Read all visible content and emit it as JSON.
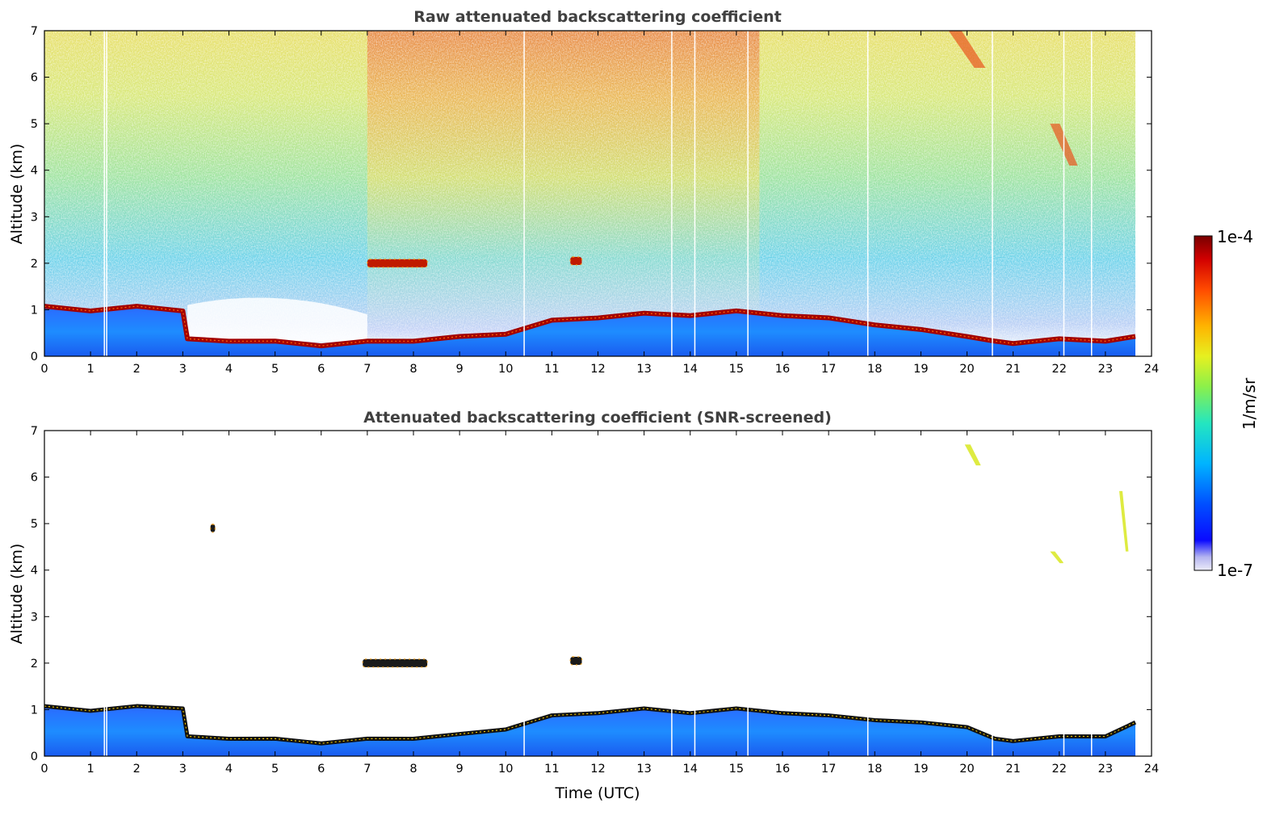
{
  "chart_data": [
    {
      "type": "heatmap",
      "title": "Raw attenuated backscattering coefficient",
      "xlabel": "",
      "ylabel": "Altitude (km)",
      "xlim": [
        0,
        24
      ],
      "ylim": [
        0,
        7
      ],
      "xticks": [
        0,
        1,
        2,
        3,
        4,
        5,
        6,
        7,
        8,
        9,
        10,
        11,
        12,
        13,
        14,
        15,
        16,
        17,
        18,
        19,
        20,
        21,
        22,
        23,
        24
      ],
      "yticks": [
        0,
        1,
        2,
        3,
        4,
        5,
        6,
        7
      ],
      "data_end_hour": 23.65,
      "noise_background": "dense speckle, increasing with altitude; strongest 7-15 UTC",
      "aerosol_layer_top_km": [
        [
          0,
          1.05
        ],
        [
          1,
          1.0
        ],
        [
          2,
          1.05
        ],
        [
          3,
          1.0
        ],
        [
          3.1,
          0.35
        ],
        [
          4,
          0.35
        ],
        [
          5,
          0.3
        ],
        [
          6,
          0.25
        ],
        [
          7,
          0.3
        ],
        [
          8,
          0.35
        ],
        [
          9,
          0.4
        ],
        [
          10,
          0.5
        ],
        [
          11,
          0.75
        ],
        [
          12,
          0.85
        ],
        [
          13,
          0.9
        ],
        [
          14,
          0.9
        ],
        [
          15,
          0.95
        ],
        [
          16,
          0.9
        ],
        [
          17,
          0.8
        ],
        [
          18,
          0.7
        ],
        [
          19,
          0.55
        ],
        [
          20,
          0.45
        ],
        [
          20.6,
          0.3
        ],
        [
          21,
          0.3
        ],
        [
          22,
          0.35
        ],
        [
          23,
          0.35
        ],
        [
          23.65,
          0.4
        ]
      ],
      "features": [
        {
          "name": "cloud",
          "x": [
            7.0,
            8.3
          ],
          "altitude_km": 2.0
        },
        {
          "name": "cloud",
          "x": [
            11.4,
            11.65
          ],
          "altitude_km": 2.05
        },
        {
          "name": "cirrus",
          "x": [
            19.6,
            20.4
          ],
          "altitude_km": [
            6.2,
            7.0
          ]
        },
        {
          "name": "cirrus",
          "x": [
            21.8,
            22.4
          ],
          "altitude_km": [
            4.1,
            5.0
          ]
        }
      ],
      "data_gaps_hours": [
        1.3,
        1.35,
        10.4,
        13.6,
        14.1,
        15.25,
        17.85,
        20.55,
        22.1,
        22.7
      ]
    },
    {
      "type": "heatmap",
      "title": "Attenuated backscattering coefficient (SNR-screened)",
      "xlabel": "Time (UTC)",
      "ylabel": "Altitude (km)",
      "xlim": [
        0,
        24
      ],
      "ylim": [
        0,
        7
      ],
      "xticks": [
        0,
        1,
        2,
        3,
        4,
        5,
        6,
        7,
        8,
        9,
        10,
        11,
        12,
        13,
        14,
        15,
        16,
        17,
        18,
        19,
        20,
        21,
        22,
        23,
        24
      ],
      "yticks": [
        0,
        1,
        2,
        3,
        4,
        5,
        6,
        7
      ],
      "data_end_hour": 23.65,
      "noise_background": "screened out (white)",
      "aerosol_layer_top_km": [
        [
          0,
          1.05
        ],
        [
          1,
          1.0
        ],
        [
          2,
          1.05
        ],
        [
          3,
          1.05
        ],
        [
          3.1,
          0.4
        ],
        [
          4,
          0.4
        ],
        [
          5,
          0.35
        ],
        [
          6,
          0.3
        ],
        [
          7,
          0.35
        ],
        [
          8,
          0.4
        ],
        [
          9,
          0.45
        ],
        [
          10,
          0.6
        ],
        [
          11,
          0.85
        ],
        [
          12,
          0.95
        ],
        [
          13,
          1.0
        ],
        [
          14,
          0.95
        ],
        [
          15,
          1.0
        ],
        [
          16,
          0.95
        ],
        [
          17,
          0.85
        ],
        [
          18,
          0.8
        ],
        [
          19,
          0.7
        ],
        [
          20,
          0.65
        ],
        [
          20.6,
          0.35
        ],
        [
          21,
          0.35
        ],
        [
          22,
          0.4
        ],
        [
          23,
          0.45
        ],
        [
          23.65,
          0.7
        ]
      ],
      "features": [
        {
          "name": "cloud",
          "x": [
            6.9,
            8.3
          ],
          "altitude_km": 2.0
        },
        {
          "name": "cloud",
          "x": [
            11.4,
            11.65
          ],
          "altitude_km": 2.05
        },
        {
          "name": "cloud",
          "x": [
            3.6,
            3.7
          ],
          "altitude_km": 4.9
        },
        {
          "name": "cirrus",
          "x": [
            19.95,
            20.3
          ],
          "altitude_km": [
            6.25,
            6.7
          ]
        },
        {
          "name": "cirrus",
          "x": [
            21.8,
            22.1
          ],
          "altitude_km": [
            4.15,
            4.4
          ]
        },
        {
          "name": "cirrus",
          "x": [
            23.3,
            23.5
          ],
          "altitude_km": [
            4.4,
            5.7
          ]
        }
      ],
      "data_gaps_hours": [
        1.3,
        1.35,
        10.4,
        13.6,
        14.1,
        15.25,
        17.85,
        20.55,
        22.1,
        22.7
      ]
    }
  ],
  "colorbar": {
    "label": "1/m/sr",
    "max_label": "1e-4",
    "min_label": "1e-7",
    "scale": "log",
    "range": [
      1e-07,
      0.0001
    ],
    "colormap": "jet",
    "colors": [
      "#e6e6f5",
      "#1a1aff",
      "#0055ff",
      "#00bfff",
      "#2ee6b4",
      "#c8f53c",
      "#ffe600",
      "#ff8c00",
      "#e61400",
      "#800000"
    ]
  }
}
